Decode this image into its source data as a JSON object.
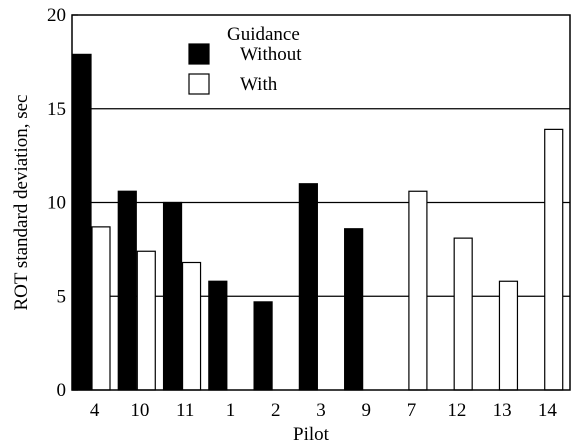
{
  "chart_data": {
    "type": "bar",
    "xlabel": "Pilot",
    "ylabel": "ROT standard deviation, sec",
    "ylim": [
      0,
      20
    ],
    "yticks": [
      0,
      5,
      10,
      15,
      20
    ],
    "grid": "horizontal at 5, 10, 15",
    "categories": [
      "4",
      "10",
      "11",
      "1",
      "2",
      "3",
      "9",
      "7",
      "12",
      "13",
      "14"
    ],
    "legend": {
      "title": "Guidance",
      "position": "top-center"
    },
    "series": [
      {
        "name": "Without",
        "color": "#000000",
        "values": [
          17.9,
          10.6,
          10.0,
          5.8,
          4.7,
          11.0,
          8.6,
          null,
          null,
          null,
          null
        ]
      },
      {
        "name": "With",
        "color": "#ffffff",
        "values": [
          8.7,
          7.4,
          6.8,
          null,
          null,
          null,
          null,
          10.6,
          8.1,
          5.8,
          13.9
        ]
      }
    ]
  }
}
